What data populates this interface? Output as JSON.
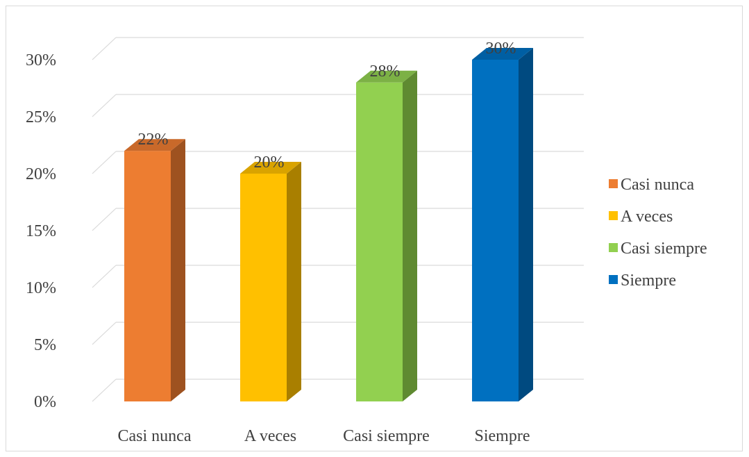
{
  "chart_data": {
    "type": "bar",
    "style": "3d-clustered-column",
    "categories": [
      "Casi nunca",
      "A veces",
      "Casi siempre",
      "Siempre"
    ],
    "values": [
      22,
      20,
      28,
      30
    ],
    "value_labels": [
      "22%",
      "20%",
      "28%",
      "30%"
    ],
    "colors": [
      "#ED7D31",
      "#FFC000",
      "#92D050",
      "#0070C0"
    ],
    "side_colors": [
      "#9E5220",
      "#A97F00",
      "#5F8A31",
      "#004A80"
    ],
    "top_colors": [
      "#C9692A",
      "#D9A300",
      "#7CB145",
      "#005FA3"
    ],
    "ylim": [
      0,
      30
    ],
    "y_ticks": [
      0,
      5,
      10,
      15,
      20,
      25,
      30
    ],
    "y_tick_labels": [
      "0%",
      "5%",
      "10%",
      "15%",
      "20%",
      "25%",
      "30%"
    ],
    "title": "",
    "xlabel": "",
    "ylabel": "",
    "grid": true,
    "legend": {
      "position": "right",
      "entries": [
        "Casi nunca",
        "A veces",
        "Casi siempre",
        "Siempre"
      ]
    }
  }
}
